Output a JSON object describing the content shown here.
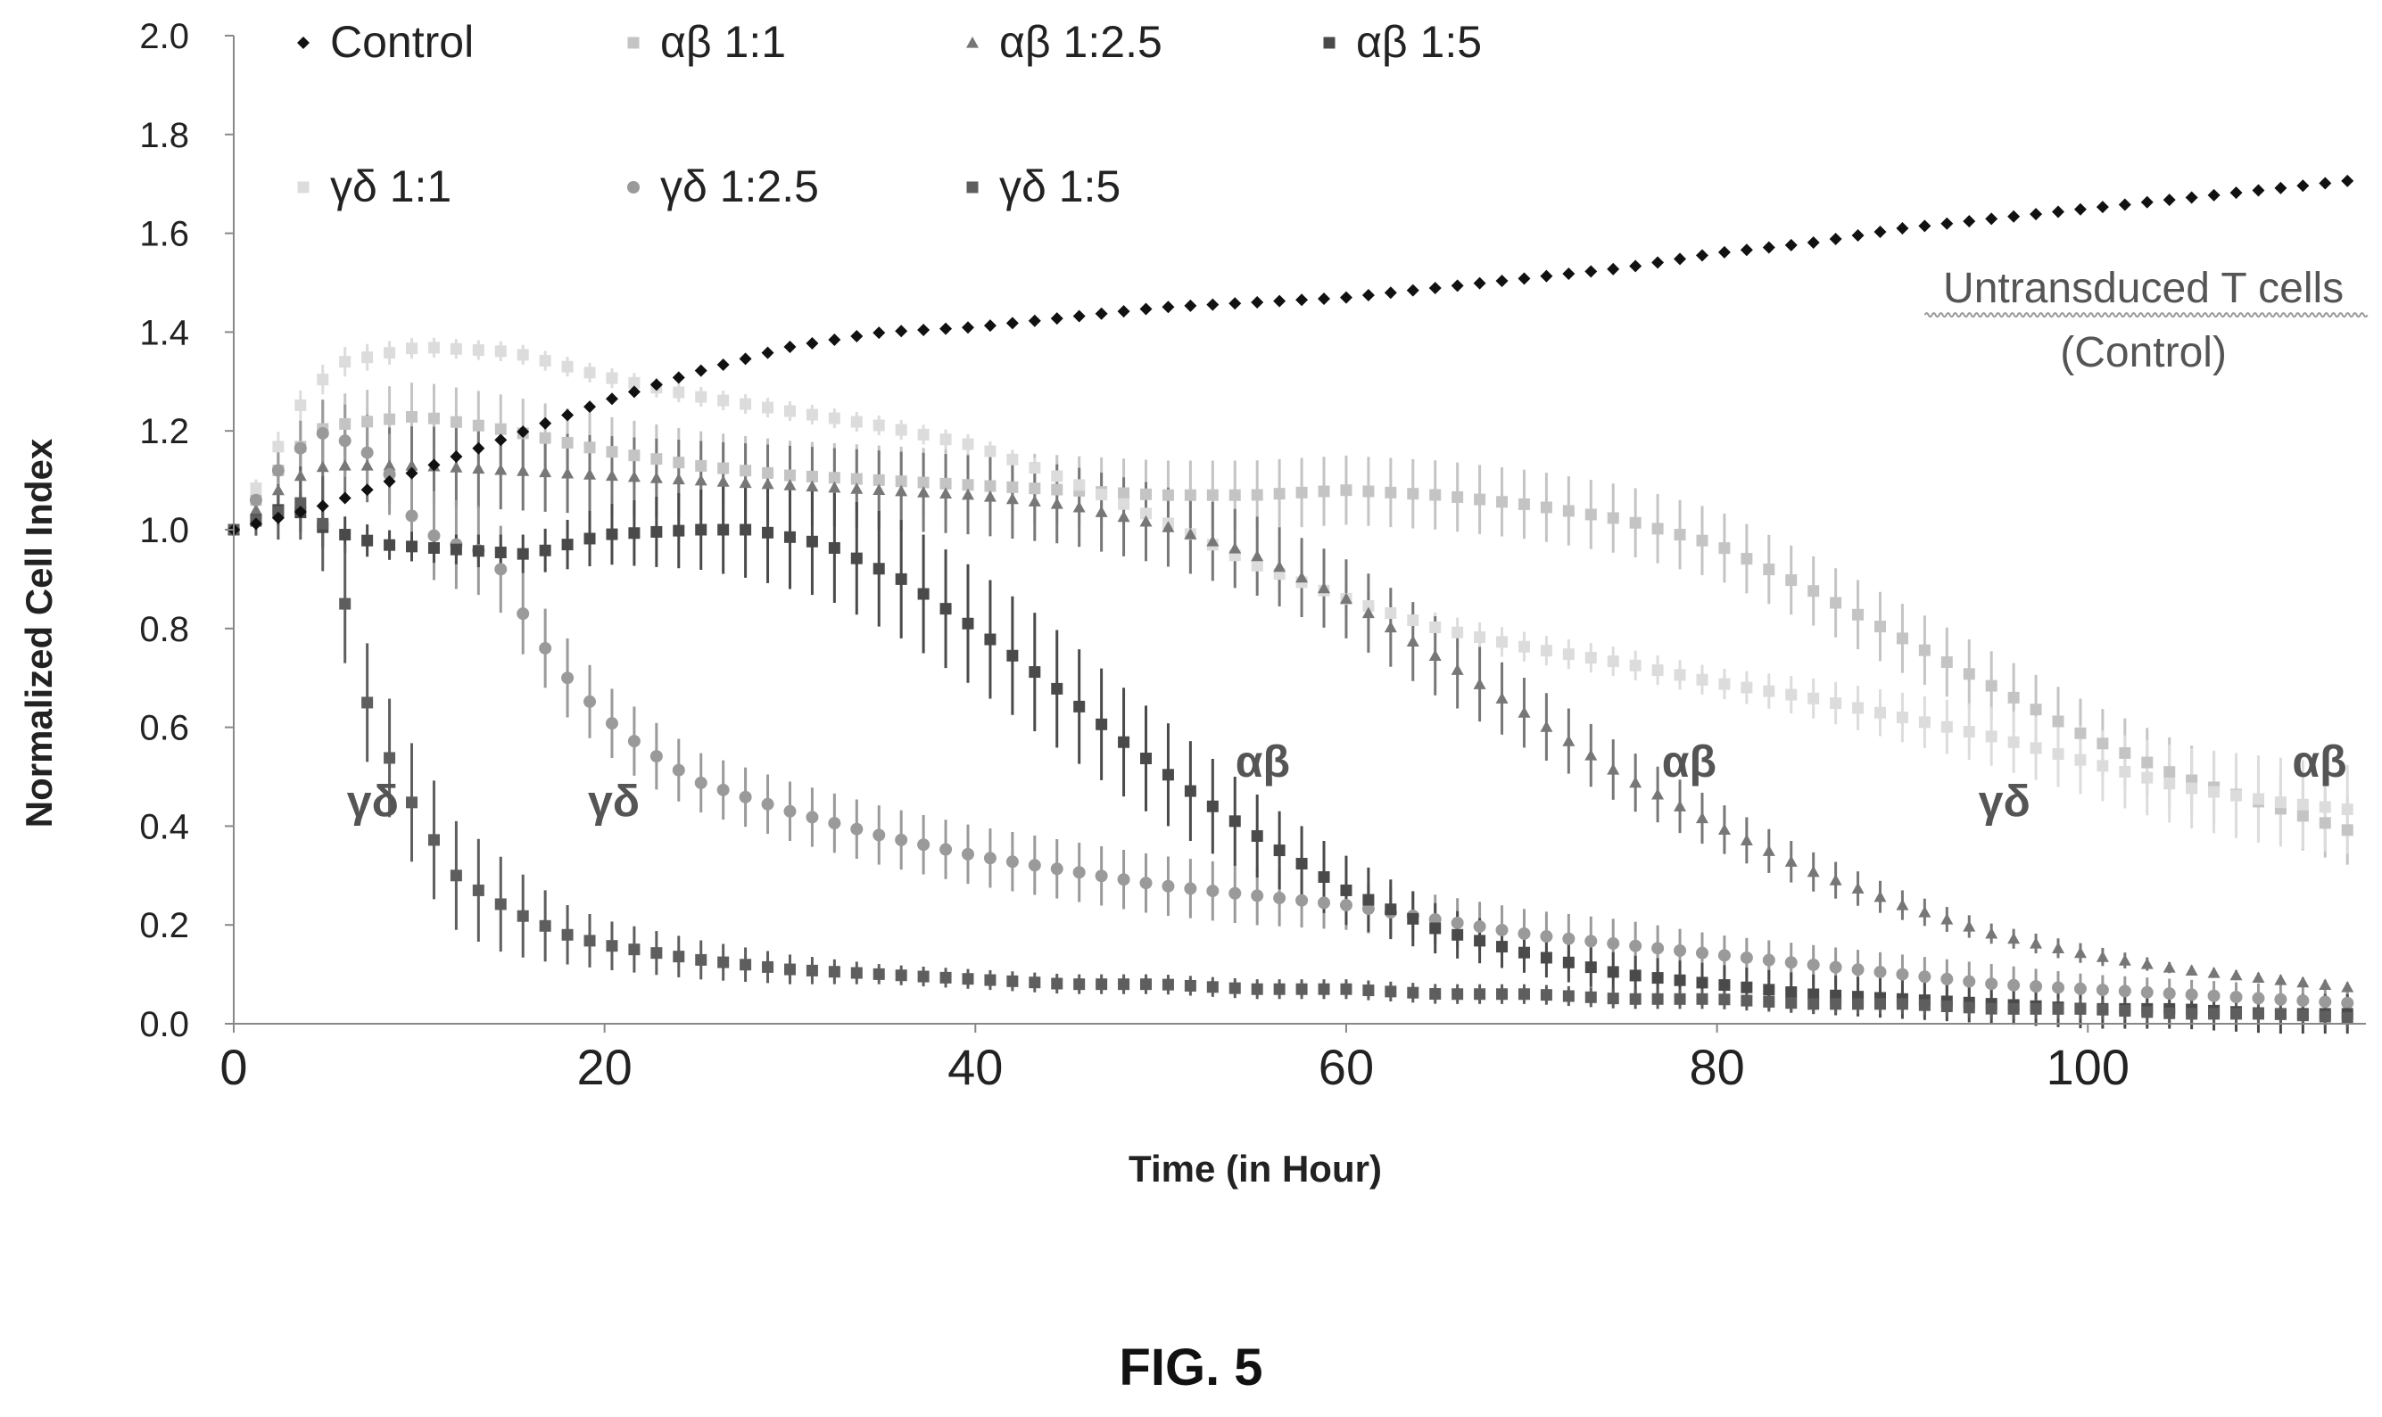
{
  "figure_label": "FIG. 5",
  "chart_data": {
    "type": "scatter",
    "title": "",
    "xlabel": "Time (in Hour)",
    "ylabel": "Normalized Cell Index",
    "xlim": [
      0,
      115
    ],
    "ylim": [
      0,
      2.0
    ],
    "x_ticks": [
      0,
      20,
      40,
      60,
      80,
      100
    ],
    "y_ticks": [
      0.0,
      0.2,
      0.4,
      0.6,
      0.8,
      1.0,
      1.2,
      1.4,
      1.6,
      1.8,
      2.0
    ],
    "y_tick_labels": [
      "0.0",
      "0.2",
      "0.4",
      "0.6",
      "0.8",
      "1.0",
      "1.2",
      "1.4",
      "1.6",
      "1.8",
      "2.0"
    ],
    "grid": false,
    "legend_position": "top-left",
    "series": [
      {
        "name": "Control",
        "marker": "diamond",
        "color": "#111111",
        "x": [
          0,
          5,
          10,
          15,
          20,
          25,
          30,
          35,
          40,
          45,
          50,
          55,
          60,
          65,
          70,
          75,
          80,
          85,
          90,
          95,
          100,
          105,
          110,
          115
        ],
        "y": [
          1.0,
          1.05,
          1.12,
          1.19,
          1.26,
          1.32,
          1.37,
          1.4,
          1.41,
          1.43,
          1.45,
          1.46,
          1.47,
          1.49,
          1.51,
          1.53,
          1.56,
          1.58,
          1.61,
          1.63,
          1.65,
          1.67,
          1.69,
          1.71
        ],
        "err": [
          0,
          0,
          0,
          0,
          0,
          0,
          0,
          0,
          0,
          0,
          0,
          0,
          0,
          0,
          0,
          0,
          0,
          0,
          0,
          0,
          0,
          0,
          0,
          0
        ]
      },
      {
        "name": "αβ 1:1",
        "marker": "square",
        "color": "#c4c4c4",
        "x": [
          0,
          3,
          5,
          10,
          15,
          20,
          25,
          30,
          35,
          40,
          45,
          50,
          55,
          60,
          65,
          70,
          75,
          80,
          85,
          90,
          95,
          100,
          105,
          110,
          115
        ],
        "y": [
          1.0,
          1.15,
          1.21,
          1.23,
          1.2,
          1.16,
          1.13,
          1.11,
          1.1,
          1.09,
          1.08,
          1.07,
          1.07,
          1.08,
          1.07,
          1.05,
          1.02,
          0.97,
          0.88,
          0.78,
          0.68,
          0.58,
          0.5,
          0.44,
          0.38
        ],
        "err": [
          0,
          0.05,
          0.06,
          0.07,
          0.07,
          0.07,
          0.07,
          0.07,
          0.07,
          0.07,
          0.07,
          0.07,
          0.07,
          0.07,
          0.07,
          0.07,
          0.07,
          0.07,
          0.07,
          0.07,
          0.07,
          0.07,
          0.07,
          0.07,
          0.07
        ]
      },
      {
        "name": "αβ 1:2.5",
        "marker": "triangle",
        "color": "#777777",
        "x": [
          0,
          3,
          5,
          10,
          15,
          20,
          25,
          30,
          35,
          40,
          45,
          50,
          55,
          60,
          65,
          70,
          75,
          80,
          85,
          90,
          95,
          100,
          105,
          110,
          115
        ],
        "y": [
          1.0,
          1.1,
          1.13,
          1.13,
          1.12,
          1.11,
          1.1,
          1.09,
          1.08,
          1.07,
          1.05,
          1.01,
          0.95,
          0.86,
          0.74,
          0.62,
          0.5,
          0.4,
          0.31,
          0.24,
          0.18,
          0.14,
          0.11,
          0.09,
          0.07
        ],
        "err": [
          0,
          0.05,
          0.07,
          0.08,
          0.08,
          0.08,
          0.08,
          0.08,
          0.08,
          0.08,
          0.08,
          0.08,
          0.08,
          0.08,
          0.08,
          0.07,
          0.06,
          0.05,
          0.04,
          0.03,
          0.02,
          0.02,
          0.01,
          0.01,
          0.01
        ]
      },
      {
        "name": "αβ 1:5",
        "marker": "square",
        "color": "#4a4a4a",
        "x": [
          0,
          3,
          5,
          8,
          12,
          16,
          20,
          25,
          28,
          32,
          36,
          40,
          44,
          48,
          52,
          56,
          60,
          65,
          70,
          75,
          80,
          85,
          90,
          95,
          100,
          105,
          110,
          115
        ],
        "y": [
          1.0,
          1.05,
          1.0,
          0.97,
          0.96,
          0.95,
          0.99,
          1.0,
          1.0,
          0.97,
          0.9,
          0.8,
          0.69,
          0.57,
          0.46,
          0.36,
          0.27,
          0.19,
          0.14,
          0.1,
          0.08,
          0.06,
          0.05,
          0.04,
          0.03,
          0.03,
          0.02,
          0.02
        ],
        "err": [
          0,
          0.04,
          0.04,
          0.03,
          0.03,
          0.04,
          0.06,
          0.08,
          0.1,
          0.11,
          0.12,
          0.12,
          0.12,
          0.11,
          0.1,
          0.08,
          0.07,
          0.05,
          0.04,
          0.04,
          0.04,
          0.04,
          0.04,
          0.04,
          0.04,
          0.04,
          0.04,
          0.04
        ]
      },
      {
        "name": "γδ 1:1",
        "marker": "square",
        "color": "#dcdcdc",
        "x": [
          0,
          2,
          4,
          6,
          10,
          15,
          20,
          25,
          30,
          35,
          40,
          45,
          50,
          55,
          60,
          65,
          70,
          75,
          80,
          85,
          90,
          95,
          100,
          105,
          110,
          115
        ],
        "y": [
          1.0,
          1.14,
          1.28,
          1.34,
          1.37,
          1.36,
          1.31,
          1.27,
          1.24,
          1.21,
          1.17,
          1.1,
          1.02,
          0.93,
          0.86,
          0.8,
          0.76,
          0.73,
          0.69,
          0.66,
          0.62,
          0.58,
          0.53,
          0.48,
          0.45,
          0.43
        ],
        "err": [
          0,
          0.03,
          0.03,
          0.03,
          0.02,
          0.02,
          0.02,
          0.02,
          0.02,
          0.02,
          0.02,
          0.02,
          0.02,
          0.02,
          0.03,
          0.03,
          0.03,
          0.03,
          0.03,
          0.04,
          0.05,
          0.06,
          0.07,
          0.08,
          0.09,
          0.09
        ]
      },
      {
        "name": "γδ 1:2.5",
        "marker": "circle",
        "color": "#9a9a9a",
        "x": [
          0,
          3,
          5,
          8,
          10,
          12,
          14,
          16,
          18,
          20,
          22,
          25,
          30,
          35,
          40,
          45,
          50,
          55,
          60,
          65,
          70,
          75,
          80,
          85,
          90,
          95,
          100,
          105,
          110,
          115
        ],
        "y": [
          1.0,
          1.15,
          1.2,
          1.14,
          1.0,
          0.97,
          0.95,
          0.8,
          0.7,
          0.62,
          0.56,
          0.49,
          0.43,
          0.38,
          0.34,
          0.31,
          0.28,
          0.26,
          0.24,
          0.21,
          0.18,
          0.16,
          0.14,
          0.12,
          0.1,
          0.08,
          0.07,
          0.06,
          0.05,
          0.04
        ],
        "err": [
          0,
          0.05,
          0.07,
          0.08,
          0.09,
          0.09,
          0.09,
          0.08,
          0.08,
          0.07,
          0.07,
          0.06,
          0.06,
          0.06,
          0.06,
          0.06,
          0.06,
          0.06,
          0.05,
          0.05,
          0.05,
          0.05,
          0.04,
          0.04,
          0.04,
          0.04,
          0.03,
          0.03,
          0.03,
          0.03
        ]
      },
      {
        "name": "γδ 1:5",
        "marker": "square",
        "color": "#5e5e5e",
        "x": [
          0,
          2,
          4,
          5,
          6,
          7,
          8,
          9,
          10,
          11,
          12,
          14,
          16,
          18,
          20,
          25,
          30,
          35,
          40,
          45,
          50,
          55,
          60,
          65,
          70,
          75,
          80,
          85,
          90,
          95,
          100,
          105,
          110,
          115
        ],
        "y": [
          1.0,
          1.03,
          1.06,
          1.0,
          0.85,
          0.67,
          0.57,
          0.49,
          0.42,
          0.36,
          0.3,
          0.25,
          0.21,
          0.18,
          0.16,
          0.13,
          0.11,
          0.1,
          0.09,
          0.08,
          0.08,
          0.07,
          0.07,
          0.06,
          0.06,
          0.05,
          0.05,
          0.04,
          0.04,
          0.03,
          0.03,
          0.02,
          0.02,
          0.01
        ],
        "err": [
          0,
          0.05,
          0.08,
          0.1,
          0.12,
          0.12,
          0.12,
          0.12,
          0.12,
          0.12,
          0.11,
          0.1,
          0.08,
          0.06,
          0.05,
          0.04,
          0.03,
          0.02,
          0.02,
          0.02,
          0.02,
          0.02,
          0.02,
          0.02,
          0.02,
          0.02,
          0.02,
          0.02,
          0.02,
          0.02,
          0.02,
          0.02,
          0.02,
          0.02
        ]
      }
    ],
    "legend": [
      [
        "Control",
        "αβ 1:1",
        "αβ 1:2.5",
        "αβ 1:5"
      ],
      [
        "γδ 1:1",
        "γδ 1:2.5",
        "γδ 1:5"
      ]
    ],
    "annotations": [
      {
        "text": "Untransduced T cells",
        "x": 103,
        "y": 1.46,
        "underline": true
      },
      {
        "text": "(Control)",
        "x": 103,
        "y": 1.33
      },
      {
        "text": "γδ",
        "x": 7.5,
        "y": 0.42
      },
      {
        "text": "γδ",
        "x": 20.5,
        "y": 0.42
      },
      {
        "text": "αβ",
        "x": 55.5,
        "y": 0.5
      },
      {
        "text": "αβ",
        "x": 78.5,
        "y": 0.5
      },
      {
        "text": "γδ",
        "x": 95.5,
        "y": 0.42
      },
      {
        "text": "αβ",
        "x": 112.5,
        "y": 0.5
      }
    ]
  }
}
